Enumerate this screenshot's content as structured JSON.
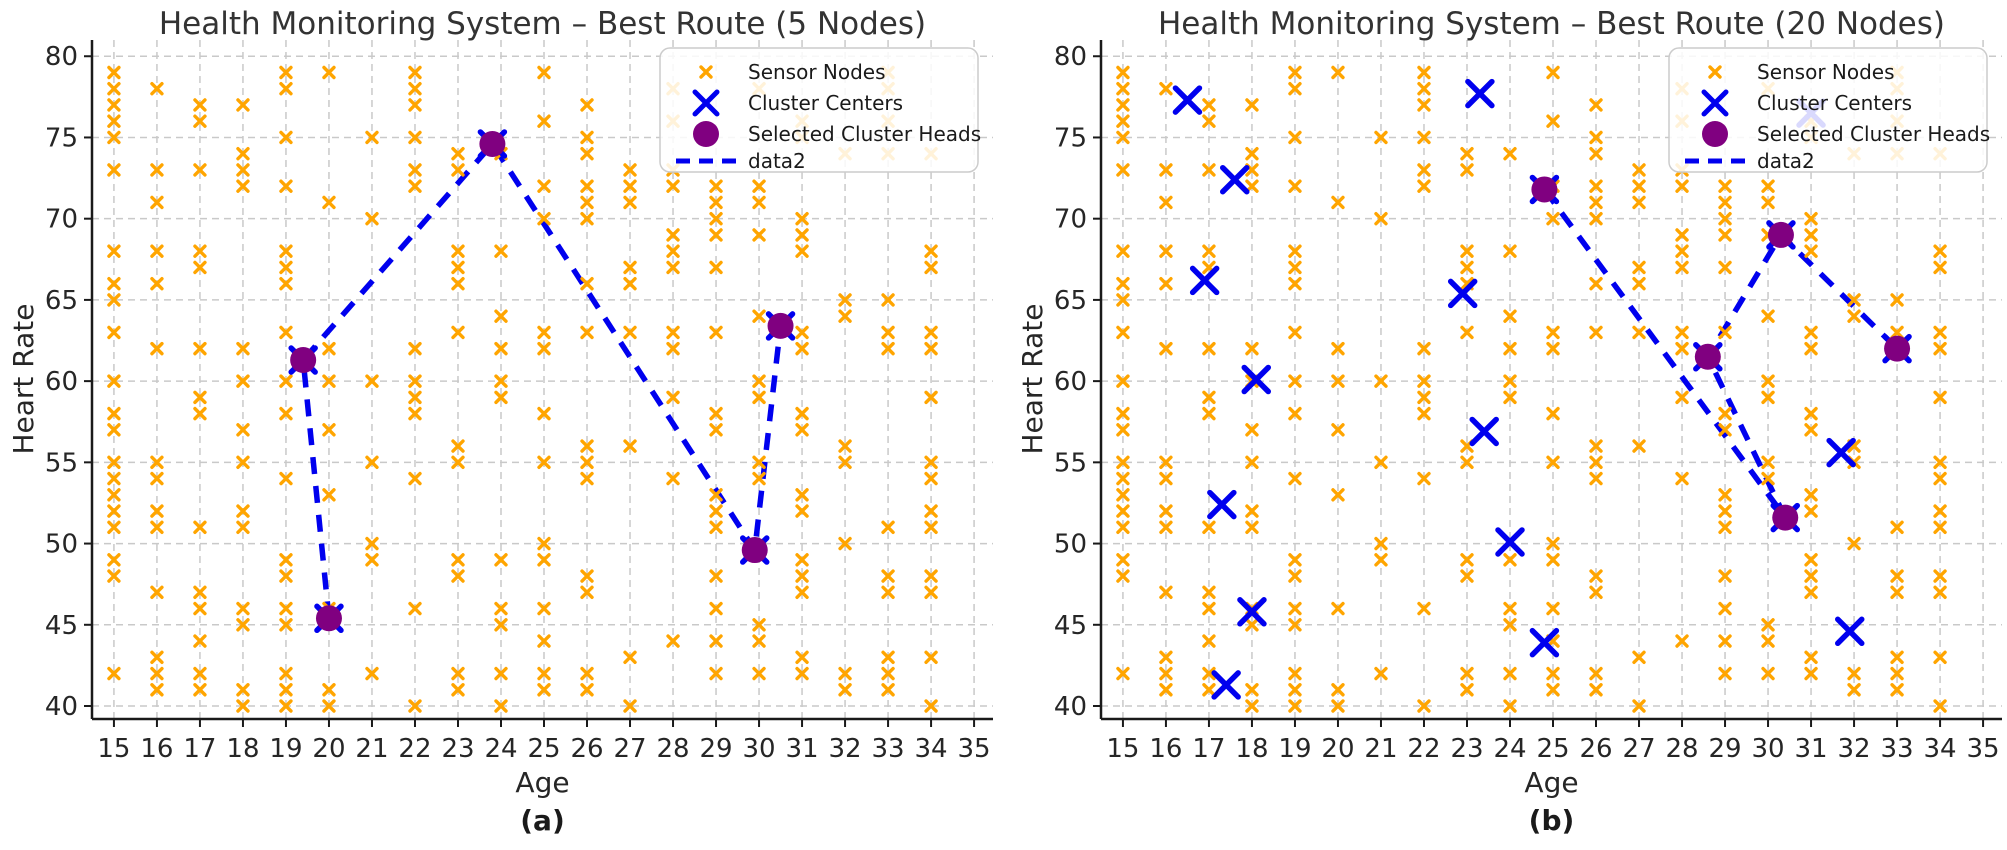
{
  "figure_title": "",
  "chart_data": [
    {
      "id": "a",
      "type": "scatter",
      "title": "Health Monitoring System – Best Route (5 Nodes)",
      "xlabel": "Age",
      "ylabel": "Heart Rate",
      "caption": "(a)",
      "xlim": [
        14.49,
        35.44
      ],
      "ylim": [
        39.2,
        81.0
      ],
      "xticks": [
        15,
        16,
        17,
        18,
        19,
        20,
        21,
        22,
        23,
        24,
        25,
        26,
        27,
        28,
        29,
        30,
        31,
        32,
        33,
        34,
        35
      ],
      "yticks": [
        40,
        45,
        50,
        55,
        60,
        65,
        70,
        75,
        80
      ],
      "grid": true,
      "legend_position": "upper right",
      "legend_labels": [
        "Sensor Nodes",
        "Cluster Centers",
        "Selected Cluster Heads",
        "data2"
      ],
      "colors": {
        "sensor": "#FFA500",
        "center": "#0000EE",
        "head": "#800080",
        "route": "#0000EE",
        "grid": "#c9c9c9"
      },
      "sensor_nodes": [
        {
          "age": 15,
          "heart_rates": [
            79,
            78,
            77,
            76,
            75,
            73,
            68,
            66,
            65,
            63,
            60,
            58,
            57,
            55,
            54,
            53,
            52,
            51,
            49,
            48,
            42
          ]
        },
        {
          "age": 16,
          "heart_rates": [
            78,
            73,
            71,
            68,
            66,
            62,
            55,
            54,
            52,
            51,
            47,
            43,
            42,
            41
          ]
        },
        {
          "age": 17,
          "heart_rates": [
            77,
            76,
            73,
            68,
            67,
            62,
            59,
            58,
            51,
            47,
            46,
            44,
            42,
            41
          ]
        },
        {
          "age": 18,
          "heart_rates": [
            77,
            74,
            73,
            72,
            62,
            60,
            57,
            55,
            52,
            51,
            46,
            45,
            41,
            40
          ]
        },
        {
          "age": 19,
          "heart_rates": [
            79,
            78,
            75,
            72,
            68,
            67,
            66,
            63,
            60,
            58,
            54,
            49,
            48,
            46,
            45,
            42,
            41,
            40
          ]
        },
        {
          "age": 20,
          "heart_rates": [
            79,
            71,
            62,
            60,
            57,
            53,
            46,
            41,
            40
          ]
        },
        {
          "age": 21,
          "heart_rates": [
            75,
            70,
            60,
            55,
            50,
            49,
            42
          ]
        },
        {
          "age": 22,
          "heart_rates": [
            79,
            78,
            77,
            75,
            73,
            72,
            62,
            60,
            59,
            58,
            54,
            46,
            40
          ]
        },
        {
          "age": 23,
          "heart_rates": [
            74,
            73,
            68,
            67,
            66,
            63,
            56,
            55,
            49,
            48,
            42,
            41
          ]
        },
        {
          "age": 24,
          "heart_rates": [
            74,
            68,
            64,
            62,
            60,
            59,
            49,
            46,
            45,
            42,
            40
          ]
        },
        {
          "age": 25,
          "heart_rates": [
            79,
            76,
            72,
            70,
            63,
            62,
            58,
            55,
            50,
            49,
            46,
            44,
            42,
            41
          ]
        },
        {
          "age": 26,
          "heart_rates": [
            77,
            75,
            74,
            72,
            71,
            70,
            66,
            63,
            56,
            55,
            54,
            48,
            47,
            42,
            41
          ]
        },
        {
          "age": 27,
          "heart_rates": [
            73,
            72,
            71,
            67,
            66,
            63,
            56,
            43,
            40
          ]
        },
        {
          "age": 28,
          "heart_rates": [
            78,
            76,
            73,
            72,
            69,
            68,
            67,
            63,
            62,
            59,
            54,
            44
          ]
        },
        {
          "age": 29,
          "heart_rates": [
            72,
            71,
            70,
            69,
            67,
            63,
            58,
            57,
            53,
            52,
            51,
            48,
            46,
            44,
            42
          ]
        },
        {
          "age": 30,
          "heart_rates": [
            78,
            72,
            71,
            69,
            64,
            60,
            59,
            55,
            54,
            45,
            44,
            42
          ]
        },
        {
          "age": 31,
          "heart_rates": [
            76,
            75,
            70,
            69,
            68,
            63,
            62,
            58,
            57,
            53,
            52,
            49,
            48,
            47,
            43,
            42
          ]
        },
        {
          "age": 32,
          "heart_rates": [
            74,
            65,
            64,
            56,
            55,
            50,
            42,
            41
          ]
        },
        {
          "age": 33,
          "heart_rates": [
            79,
            78,
            76,
            74,
            65,
            63,
            62,
            51,
            48,
            47,
            43,
            42,
            41
          ]
        },
        {
          "age": 34,
          "heart_rates": [
            74,
            68,
            67,
            63,
            62,
            59,
            55,
            54,
            52,
            51,
            48,
            47,
            43,
            40
          ]
        }
      ],
      "cluster_centers": [
        [
          19.4,
          61.3
        ],
        [
          23.8,
          74.6
        ],
        [
          30.5,
          63.4
        ],
        [
          29.9,
          49.6
        ],
        [
          20.0,
          45.4
        ]
      ],
      "cluster_heads": [
        [
          19.4,
          61.3
        ],
        [
          23.8,
          74.6
        ],
        [
          30.5,
          63.4
        ],
        [
          29.9,
          49.6
        ],
        [
          20.0,
          45.4
        ]
      ],
      "route": [
        [
          20.0,
          45.4
        ],
        [
          19.4,
          61.3
        ],
        [
          23.8,
          74.6
        ],
        [
          29.9,
          49.6
        ],
        [
          30.5,
          63.4
        ]
      ]
    },
    {
      "id": "b",
      "type": "scatter",
      "title": "Health Monitoring System – Best Route (20 Nodes)",
      "xlabel": "Age",
      "ylabel": "Heart Rate",
      "caption": "(b)",
      "xlim": [
        14.49,
        35.44
      ],
      "ylim": [
        39.2,
        81.0
      ],
      "xticks": [
        15,
        16,
        17,
        18,
        19,
        20,
        21,
        22,
        23,
        24,
        25,
        26,
        27,
        28,
        29,
        30,
        31,
        32,
        33,
        34,
        35
      ],
      "yticks": [
        40,
        45,
        50,
        55,
        60,
        65,
        70,
        75,
        80
      ],
      "grid": true,
      "legend_position": "upper right",
      "legend_labels": [
        "Sensor Nodes",
        "Cluster Centers",
        "Selected Cluster Heads",
        "data2"
      ],
      "colors": {
        "sensor": "#FFA500",
        "center": "#0000EE",
        "head": "#800080",
        "route": "#0000EE",
        "grid": "#c9c9c9"
      },
      "sensor_nodes": [
        {
          "age": 15,
          "heart_rates": [
            79,
            78,
            77,
            76,
            75,
            73,
            68,
            66,
            65,
            63,
            60,
            58,
            57,
            55,
            54,
            53,
            52,
            51,
            49,
            48,
            42
          ]
        },
        {
          "age": 16,
          "heart_rates": [
            78,
            73,
            71,
            68,
            66,
            62,
            55,
            54,
            52,
            51,
            47,
            43,
            42,
            41
          ]
        },
        {
          "age": 17,
          "heart_rates": [
            77,
            76,
            73,
            68,
            67,
            62,
            59,
            58,
            51,
            47,
            46,
            44,
            42,
            41
          ]
        },
        {
          "age": 18,
          "heart_rates": [
            77,
            74,
            73,
            72,
            62,
            60,
            57,
            55,
            52,
            51,
            46,
            45,
            41,
            40
          ]
        },
        {
          "age": 19,
          "heart_rates": [
            79,
            78,
            75,
            72,
            68,
            67,
            66,
            63,
            60,
            58,
            54,
            49,
            48,
            46,
            45,
            42,
            41,
            40
          ]
        },
        {
          "age": 20,
          "heart_rates": [
            79,
            71,
            62,
            60,
            57,
            53,
            46,
            41,
            40
          ]
        },
        {
          "age": 21,
          "heart_rates": [
            75,
            70,
            60,
            55,
            50,
            49,
            42
          ]
        },
        {
          "age": 22,
          "heart_rates": [
            79,
            78,
            77,
            75,
            73,
            72,
            62,
            60,
            59,
            58,
            54,
            46,
            40
          ]
        },
        {
          "age": 23,
          "heart_rates": [
            74,
            73,
            68,
            67,
            66,
            63,
            56,
            55,
            49,
            48,
            42,
            41
          ]
        },
        {
          "age": 24,
          "heart_rates": [
            74,
            68,
            64,
            62,
            60,
            59,
            49,
            46,
            45,
            42,
            40
          ]
        },
        {
          "age": 25,
          "heart_rates": [
            79,
            76,
            72,
            70,
            63,
            62,
            58,
            55,
            50,
            49,
            46,
            44,
            42,
            41
          ]
        },
        {
          "age": 26,
          "heart_rates": [
            77,
            75,
            74,
            72,
            71,
            70,
            66,
            63,
            56,
            55,
            54,
            48,
            47,
            42,
            41
          ]
        },
        {
          "age": 27,
          "heart_rates": [
            73,
            72,
            71,
            67,
            66,
            63,
            56,
            43,
            40
          ]
        },
        {
          "age": 28,
          "heart_rates": [
            78,
            76,
            73,
            72,
            69,
            68,
            67,
            63,
            62,
            59,
            54,
            44
          ]
        },
        {
          "age": 29,
          "heart_rates": [
            72,
            71,
            70,
            69,
            67,
            63,
            58,
            57,
            53,
            52,
            51,
            48,
            46,
            44,
            42
          ]
        },
        {
          "age": 30,
          "heart_rates": [
            78,
            72,
            71,
            69,
            64,
            60,
            59,
            55,
            54,
            45,
            44,
            42
          ]
        },
        {
          "age": 31,
          "heart_rates": [
            76,
            75,
            70,
            69,
            68,
            63,
            62,
            58,
            57,
            53,
            52,
            49,
            48,
            47,
            43,
            42
          ]
        },
        {
          "age": 32,
          "heart_rates": [
            74,
            65,
            64,
            56,
            55,
            50,
            42,
            41
          ]
        },
        {
          "age": 33,
          "heart_rates": [
            79,
            78,
            76,
            74,
            65,
            63,
            62,
            51,
            48,
            47,
            43,
            42,
            41
          ]
        },
        {
          "age": 34,
          "heart_rates": [
            74,
            68,
            67,
            63,
            62,
            59,
            55,
            54,
            52,
            51,
            48,
            47,
            43,
            40
          ]
        }
      ],
      "cluster_centers": [
        [
          16.5,
          77.3
        ],
        [
          17.6,
          72.4
        ],
        [
          16.9,
          66.2
        ],
        [
          18.1,
          60.1
        ],
        [
          17.3,
          52.4
        ],
        [
          18.0,
          45.8
        ],
        [
          17.4,
          41.3
        ],
        [
          23.3,
          77.7
        ],
        [
          22.9,
          65.4
        ],
        [
          23.4,
          56.9
        ],
        [
          24.0,
          50.1
        ],
        [
          24.8,
          43.9
        ],
        [
          31.0,
          76.5
        ],
        [
          31.7,
          55.6
        ],
        [
          31.9,
          44.6
        ],
        [
          24.8,
          71.8
        ],
        [
          30.3,
          69.0
        ],
        [
          28.6,
          61.5
        ],
        [
          33.0,
          62.0
        ],
        [
          30.4,
          51.6
        ]
      ],
      "cluster_heads": [
        [
          24.8,
          71.8
        ],
        [
          30.4,
          51.6
        ],
        [
          28.6,
          61.5
        ],
        [
          30.3,
          69.0
        ],
        [
          33.0,
          62.0
        ]
      ],
      "route": [
        [
          24.8,
          71.8
        ],
        [
          30.4,
          51.6
        ],
        [
          28.6,
          61.5
        ],
        [
          30.3,
          69.0
        ],
        [
          33.0,
          62.0
        ]
      ]
    }
  ]
}
